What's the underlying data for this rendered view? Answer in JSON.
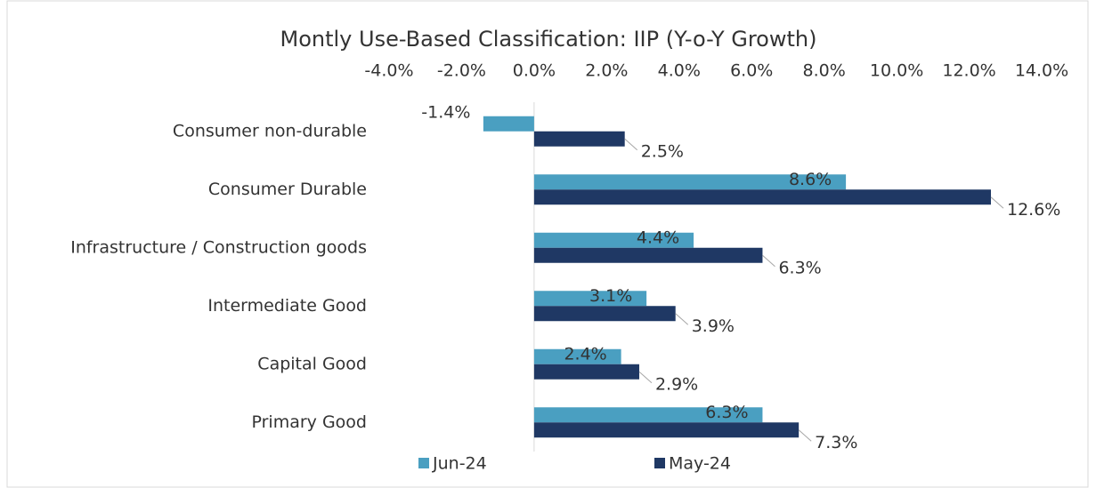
{
  "chart_data": {
    "type": "hbar",
    "title": "Montly Use-Based Classification: IIP (Y-o-Y Growth)",
    "categories": [
      "Consumer non-durable",
      "Consumer Durable",
      "Infrastructure / Construction goods",
      "Intermediate Good",
      "Capital Good",
      "Primary Good"
    ],
    "series": [
      {
        "name": "Jun-24",
        "color": "#4a9fc1",
        "values": [
          -1.4,
          8.6,
          4.4,
          3.1,
          2.4,
          6.3
        ],
        "value_labels": [
          "-1.4%",
          "8.6%",
          "4.4%",
          "3.1%",
          "2.4%",
          "6.3%"
        ]
      },
      {
        "name": "May-24",
        "color": "#1f3864",
        "values": [
          2.5,
          12.6,
          6.3,
          3.9,
          2.9,
          7.3
        ],
        "value_labels": [
          "2.5%",
          "12.6%",
          "6.3%",
          "3.9%",
          "2.9%",
          "7.3%"
        ]
      }
    ],
    "xlim": [
      -4,
      14
    ],
    "xticks": [
      {
        "value": -4,
        "label": "-4.0%"
      },
      {
        "value": -2,
        "label": "-2.0%"
      },
      {
        "value": 0,
        "label": "0.0%"
      },
      {
        "value": 2,
        "label": "2.0%"
      },
      {
        "value": 4,
        "label": "4.0%"
      },
      {
        "value": 6,
        "label": "6.0%"
      },
      {
        "value": 8,
        "label": "8.0%"
      },
      {
        "value": 10,
        "label": "10.0%"
      },
      {
        "value": 12,
        "label": "12.0%"
      },
      {
        "value": 14,
        "label": "14.0%"
      }
    ],
    "legend": "bottom"
  }
}
